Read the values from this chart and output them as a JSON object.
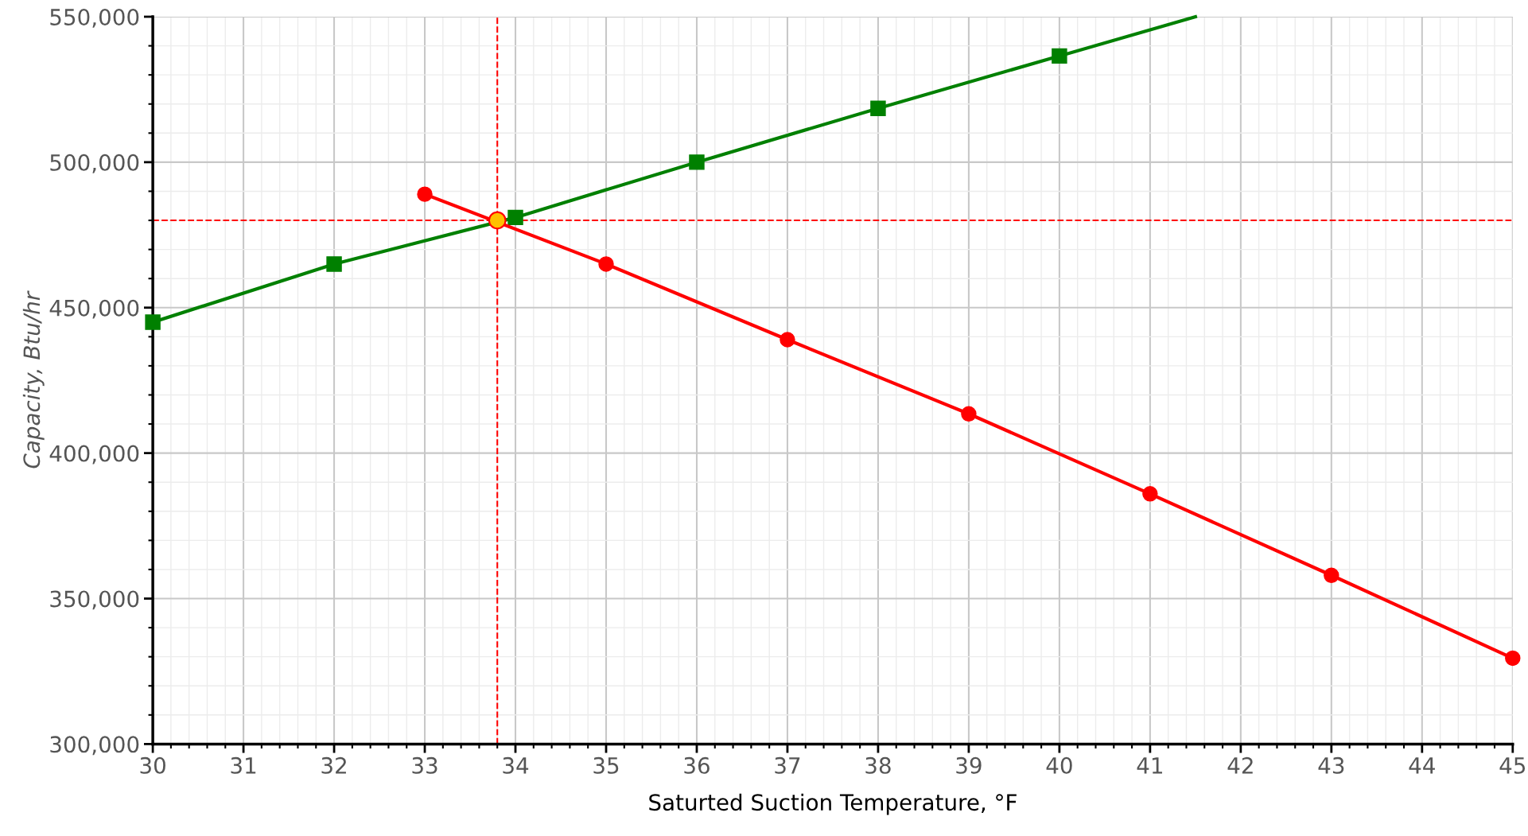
{
  "chart_data": {
    "type": "line",
    "xlabel": "Saturted Suction Temperature, °F",
    "ylabel": "Capacity, Btu/hr",
    "xlim": [
      30,
      45
    ],
    "xticks": [
      30,
      31,
      32,
      33,
      34,
      35,
      36,
      37,
      38,
      39,
      40,
      41,
      42,
      43,
      44,
      45
    ],
    "ylim": [
      300000,
      550000
    ],
    "yticks": [
      {
        "value": 300000,
        "label": "300,000"
      },
      {
        "value": 350000,
        "label": "350,000"
      },
      {
        "value": 400000,
        "label": "400,000"
      },
      {
        "value": 450000,
        "label": "450,000"
      },
      {
        "value": 500000,
        "label": "500,000"
      },
      {
        "value": 550000,
        "label": "550,000"
      }
    ],
    "grid": true,
    "series": [
      {
        "color": "#008000",
        "marker": "square",
        "x": [
          30,
          32,
          34,
          36,
          38,
          40
        ],
        "values": [
          445000,
          465000,
          481000,
          500000,
          518500,
          536500
        ]
      },
      {
        "color": "#008000",
        "marker": "none",
        "x": [
          40,
          41.5
        ],
        "values": [
          536500,
          550000
        ]
      },
      {
        "color": "#ff0000",
        "marker": "circle",
        "x": [
          33,
          35,
          37,
          39,
          41,
          43,
          45
        ],
        "values": [
          489000,
          465000,
          439000,
          413500,
          386000,
          358000,
          329500
        ]
      },
      {
        "type": "scatter",
        "color": "#ffc000",
        "marker": "circle",
        "x": [
          33.8
        ],
        "values": [
          480000
        ]
      }
    ],
    "ref_lines": [
      {
        "axis": "x",
        "value": 33.8,
        "color": "#ff0000",
        "line_style": "dashed"
      },
      {
        "axis": "y",
        "value": 480000,
        "color": "#ff0000",
        "line_style": "dashed"
      }
    ]
  }
}
